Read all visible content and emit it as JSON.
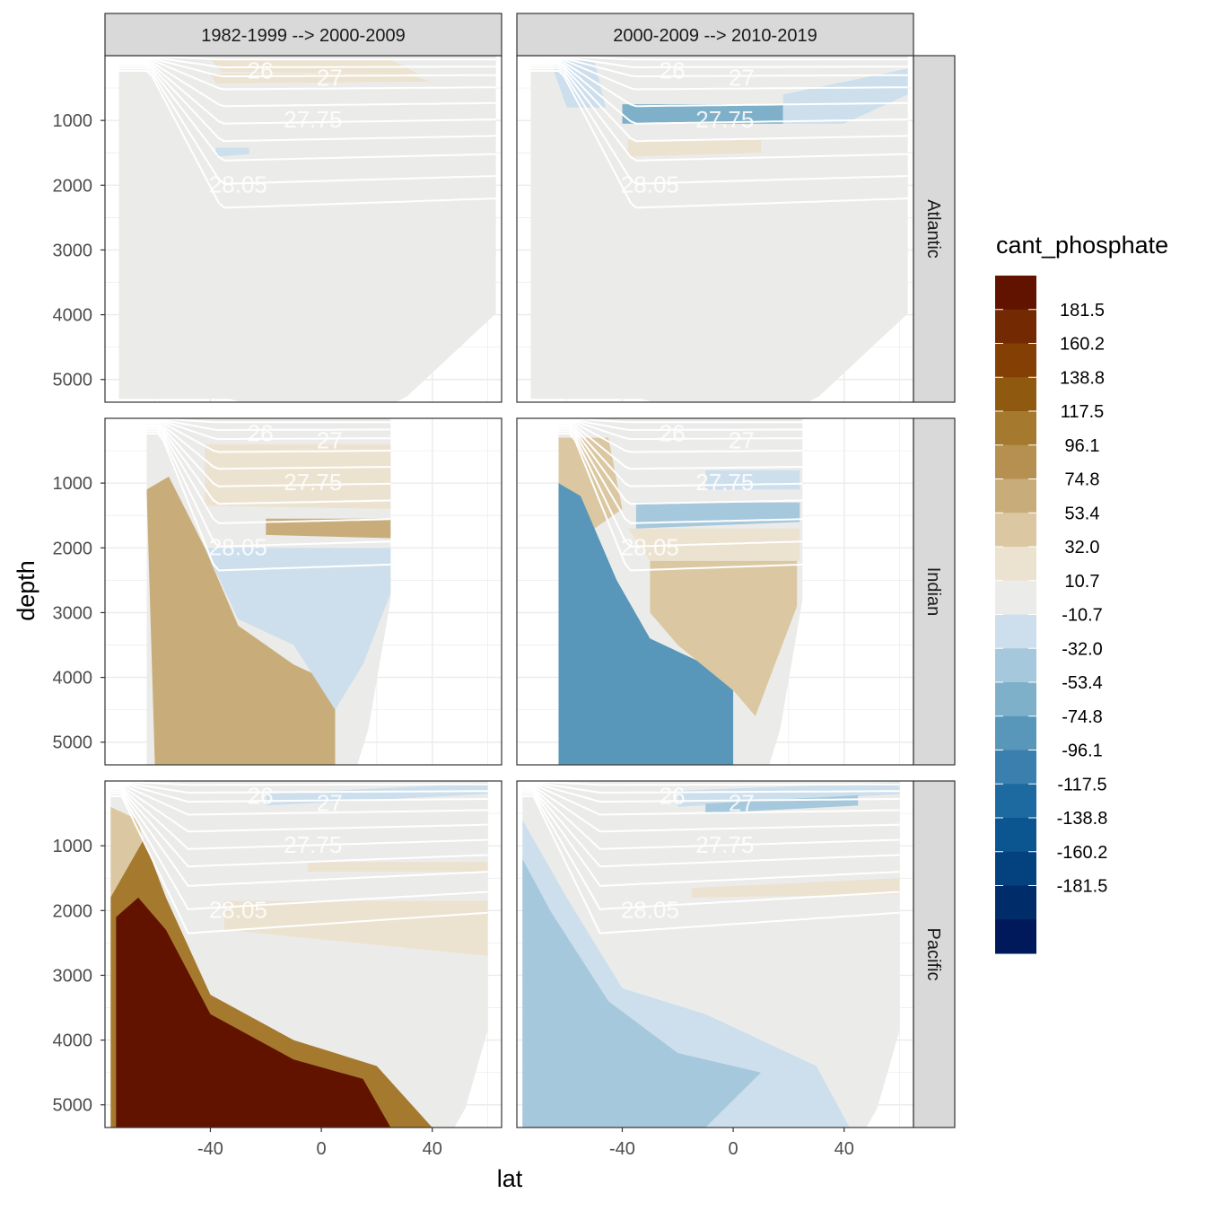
{
  "chart_data": {
    "type": "heatmap",
    "title": "",
    "xlabel": "lat",
    "ylabel": "depth",
    "x_ticks": [
      "-40",
      "0",
      "40"
    ],
    "y_ticks": [
      "1000",
      "2000",
      "3000",
      "4000",
      "5000"
    ],
    "xlim": [
      -78,
      65
    ],
    "ylim": [
      5350,
      0
    ],
    "columns": [
      "1982-1999 --> 2000-2009",
      "2000-2009 --> 2010-2019"
    ],
    "rows": [
      "Atlantic",
      "Indian",
      "Pacific"
    ],
    "isopycnal_labels": [
      "26",
      "27",
      "27.75",
      "28.05"
    ],
    "legend": {
      "title": "cant_phosphate",
      "labels": [
        "181.5",
        "160.2",
        "138.8",
        "117.5",
        "96.1",
        "74.8",
        "53.4",
        "32.0",
        "10.7",
        "-10.7",
        "-32.0",
        "-53.4",
        "-74.8",
        "-96.1",
        "-117.5",
        "-138.8",
        "-160.2",
        "-181.5"
      ],
      "colors": [
        "#611300",
        "#732a03",
        "#833f04",
        "#8f5a10",
        "#a57a2e",
        "#b59050",
        "#c8ad7b",
        "#dbc8a2",
        "#ece2d0",
        "#ebecea",
        "#cddfec",
        "#a6c8dc",
        "#7fb0ca",
        "#5997ba",
        "#3a7fad",
        "#1c6a9f",
        "#0b5590",
        "#03417f",
        "#002c6a",
        "#00195a"
      ]
    }
  }
}
